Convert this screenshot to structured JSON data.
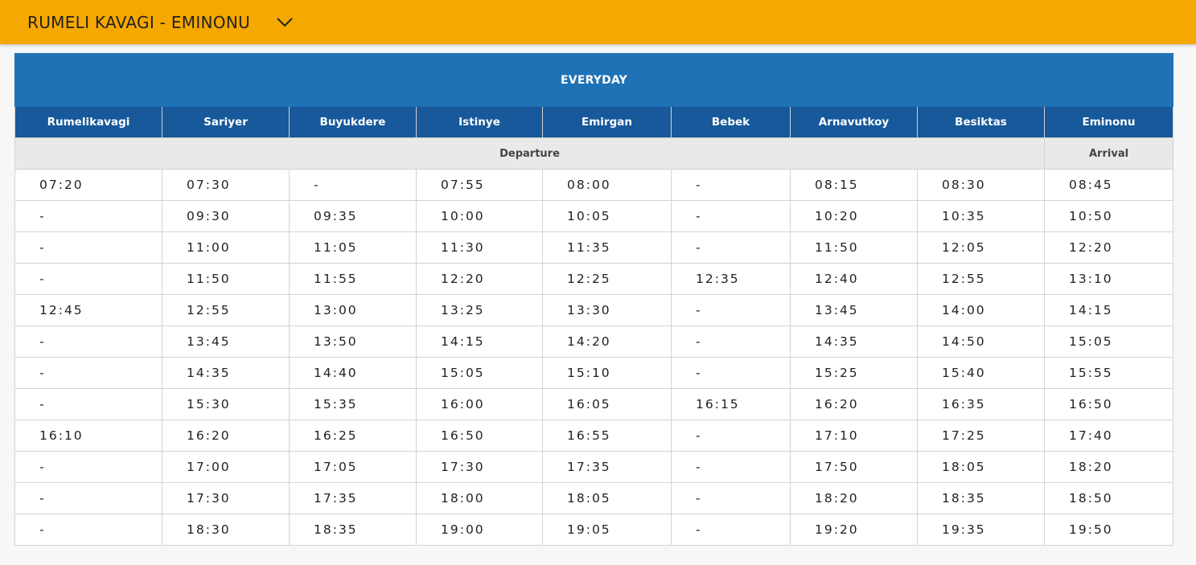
{
  "header": {
    "route_title": "RUMELI KAVAGI - EMINONU"
  },
  "timetable": {
    "title": "EVERYDAY",
    "stations": [
      "Rumelikavagi",
      "Sariyer",
      "Buyukdere",
      "Istinye",
      "Emirgan",
      "Bebek",
      "Arnavutkoy",
      "Besiktas",
      "Eminonu"
    ],
    "departure_label": "Departure",
    "arrival_label": "Arrival",
    "rows": [
      [
        "07:20",
        "07:30",
        "-",
        "07:55",
        "08:00",
        "-",
        "08:15",
        "08:30",
        "08:45"
      ],
      [
        "-",
        "09:30",
        "09:35",
        "10:00",
        "10:05",
        "-",
        "10:20",
        "10:35",
        "10:50"
      ],
      [
        "-",
        "11:00",
        "11:05",
        "11:30",
        "11:35",
        "-",
        "11:50",
        "12:05",
        "12:20"
      ],
      [
        "-",
        "11:50",
        "11:55",
        "12:20",
        "12:25",
        "12:35",
        "12:40",
        "12:55",
        "13:10"
      ],
      [
        "12:45",
        "12:55",
        "13:00",
        "13:25",
        "13:30",
        "-",
        "13:45",
        "14:00",
        "14:15"
      ],
      [
        "-",
        "13:45",
        "13:50",
        "14:15",
        "14:20",
        "-",
        "14:35",
        "14:50",
        "15:05"
      ],
      [
        "-",
        "14:35",
        "14:40",
        "15:05",
        "15:10",
        "-",
        "15:25",
        "15:40",
        "15:55"
      ],
      [
        "-",
        "15:30",
        "15:35",
        "16:00",
        "16:05",
        "16:15",
        "16:20",
        "16:35",
        "16:50"
      ],
      [
        "16:10",
        "16:20",
        "16:25",
        "16:50",
        "16:55",
        "-",
        "17:10",
        "17:25",
        "17:40"
      ],
      [
        "-",
        "17:00",
        "17:05",
        "17:30",
        "17:35",
        "-",
        "17:50",
        "18:05",
        "18:20"
      ],
      [
        "-",
        "17:30",
        "17:35",
        "18:00",
        "18:05",
        "-",
        "18:20",
        "18:35",
        "18:50"
      ],
      [
        "-",
        "18:30",
        "18:35",
        "19:00",
        "19:05",
        "-",
        "19:20",
        "19:35",
        "19:50"
      ]
    ]
  },
  "icons": {
    "dropdown": "chevron-down-icon"
  },
  "colors": {
    "topbar": "#f5a800",
    "title_header": "#1f72b6",
    "station_header": "#17599a",
    "sub_header": "#e9e9e9"
  }
}
